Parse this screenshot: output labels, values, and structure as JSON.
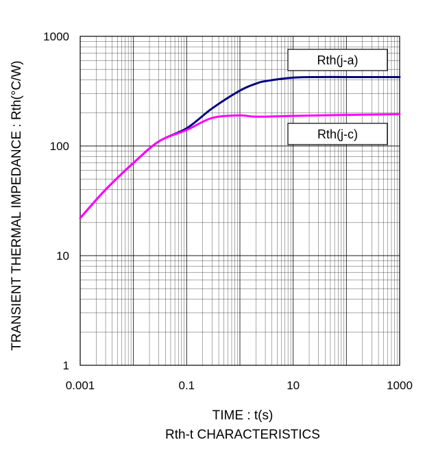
{
  "chart_data": {
    "type": "line",
    "xlabel": "TIME : t(s)",
    "ylabel": "TRANSIENT THERMAL IMPEDANCE : Rth(°C/W)",
    "subtitle": "Rth-t CHARACTERISTICS",
    "xscale": "log",
    "yscale": "log",
    "xlim": [
      0.001,
      1000
    ],
    "ylim": [
      1,
      1000
    ],
    "grid": true,
    "x_ticks": [
      "0.001",
      "0.1",
      "10",
      "1000"
    ],
    "y_ticks": [
      "1",
      "10",
      "100",
      "1000"
    ],
    "series": [
      {
        "name": "Rth(j-a)",
        "color": "#000080",
        "x": [
          0.001,
          0.003,
          0.01,
          0.03,
          0.1,
          0.3,
          1,
          2,
          3,
          10,
          30,
          100,
          1000
        ],
        "y": [
          22,
          40,
          70,
          110,
          145,
          220,
          320,
          370,
          390,
          420,
          425,
          425,
          425
        ]
      },
      {
        "name": "Rth(j-c)",
        "color": "#ff00ff",
        "x": [
          0.001,
          0.003,
          0.01,
          0.03,
          0.1,
          0.3,
          1,
          2,
          10,
          100,
          1000
        ],
        "y": [
          22,
          40,
          70,
          110,
          140,
          180,
          190,
          185,
          188,
          192,
          195
        ]
      }
    ],
    "legend": "labels on curves"
  }
}
